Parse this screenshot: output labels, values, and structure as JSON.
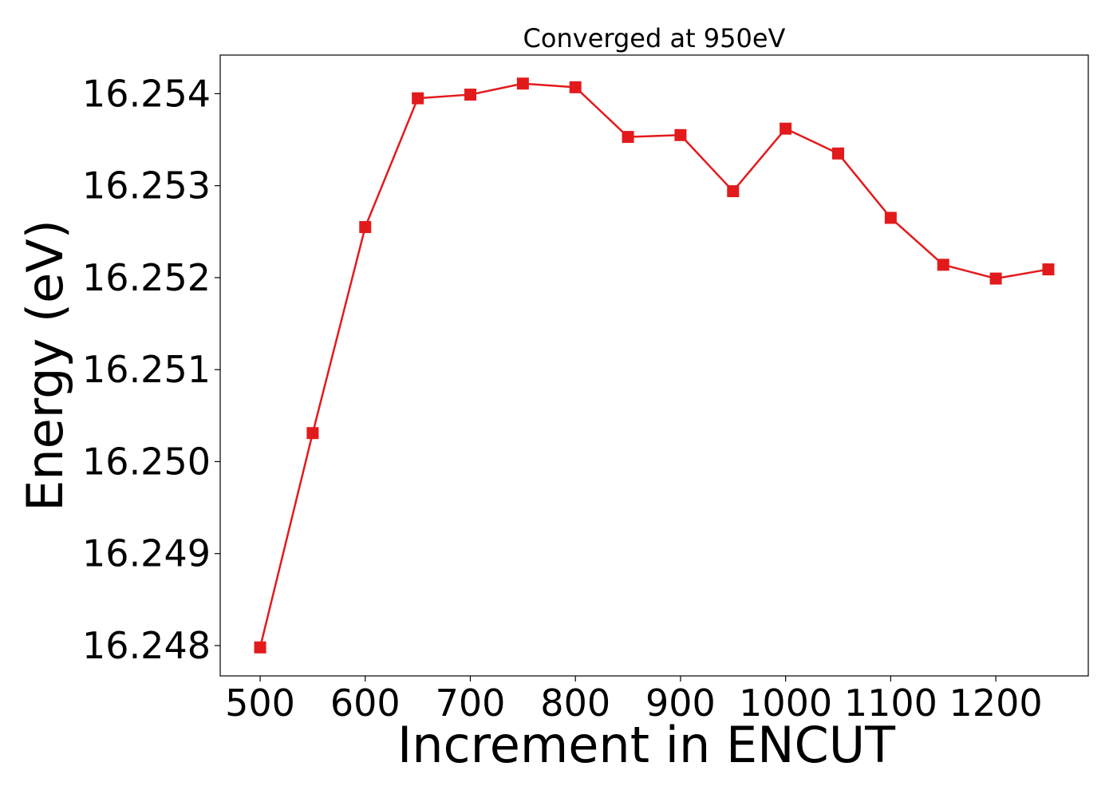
{
  "chart_data": {
    "type": "line",
    "title": "Converged at 950eV",
    "xlabel": "Increment in ENCUT",
    "ylabel": "Energy (eV)",
    "xlim": [
      462,
      1288
    ],
    "ylim": [
      16.24767,
      16.25442
    ],
    "xticks": [
      500,
      600,
      700,
      800,
      900,
      1000,
      1100,
      1200
    ],
    "xtick_labels": [
      "500",
      "600",
      "700",
      "800",
      "900",
      "1000",
      "1100",
      "1200"
    ],
    "yticks": [
      16.248,
      16.249,
      16.25,
      16.251,
      16.252,
      16.253,
      16.254
    ],
    "ytick_labels": [
      "16.248",
      "16.249",
      "16.250",
      "16.251",
      "16.252",
      "16.253",
      "16.254"
    ],
    "grid": false,
    "legend": "none",
    "series": [
      {
        "color": "#e31a1c",
        "marker": "square",
        "x": [
          500,
          550,
          600,
          650,
          700,
          750,
          800,
          850,
          900,
          950,
          1000,
          1050,
          1100,
          1150,
          1200,
          1250
        ],
        "y": [
          16.24798,
          16.25031,
          16.25255,
          16.25395,
          16.25399,
          16.25411,
          16.25407,
          16.25353,
          16.25355,
          16.25294,
          16.25362,
          16.25335,
          16.25265,
          16.25214,
          16.25199,
          16.25209
        ]
      }
    ]
  }
}
